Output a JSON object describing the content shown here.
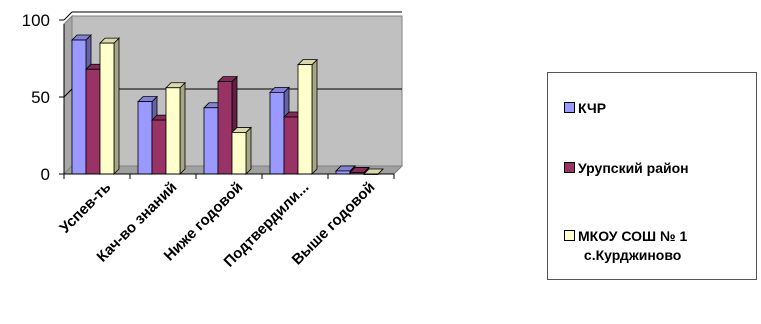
{
  "chart_data": {
    "type": "bar",
    "style": "3d-clustered",
    "categories": [
      "Успев-ть",
      "Кач-во знаний",
      "Ниже годовой",
      "Подтвердили...",
      "Выше годовой"
    ],
    "series": [
      {
        "name": "КЧР",
        "values": [
          87,
          47,
          43,
          53,
          2
        ],
        "color": "#9999ff"
      },
      {
        "name": "Урупский район",
        "values": [
          68,
          35,
          60,
          37,
          1
        ],
        "color": "#993366"
      },
      {
        "name": "МКОУ СОШ № 1 с.Курджиново",
        "values": [
          85,
          56,
          27,
          71,
          0
        ],
        "color": "#ffffcc"
      }
    ],
    "ylim": [
      0,
      100
    ],
    "yticks": [
      "0",
      "50",
      "100"
    ],
    "grid": true,
    "plot_background": "#c0c0c0",
    "legend_position": "right"
  },
  "legend": {
    "items": [
      {
        "label": "КЧР"
      },
      {
        "label": "Урупский район"
      },
      {
        "label": "МКОУ СОШ № 1\nс.Курджиново"
      }
    ]
  }
}
